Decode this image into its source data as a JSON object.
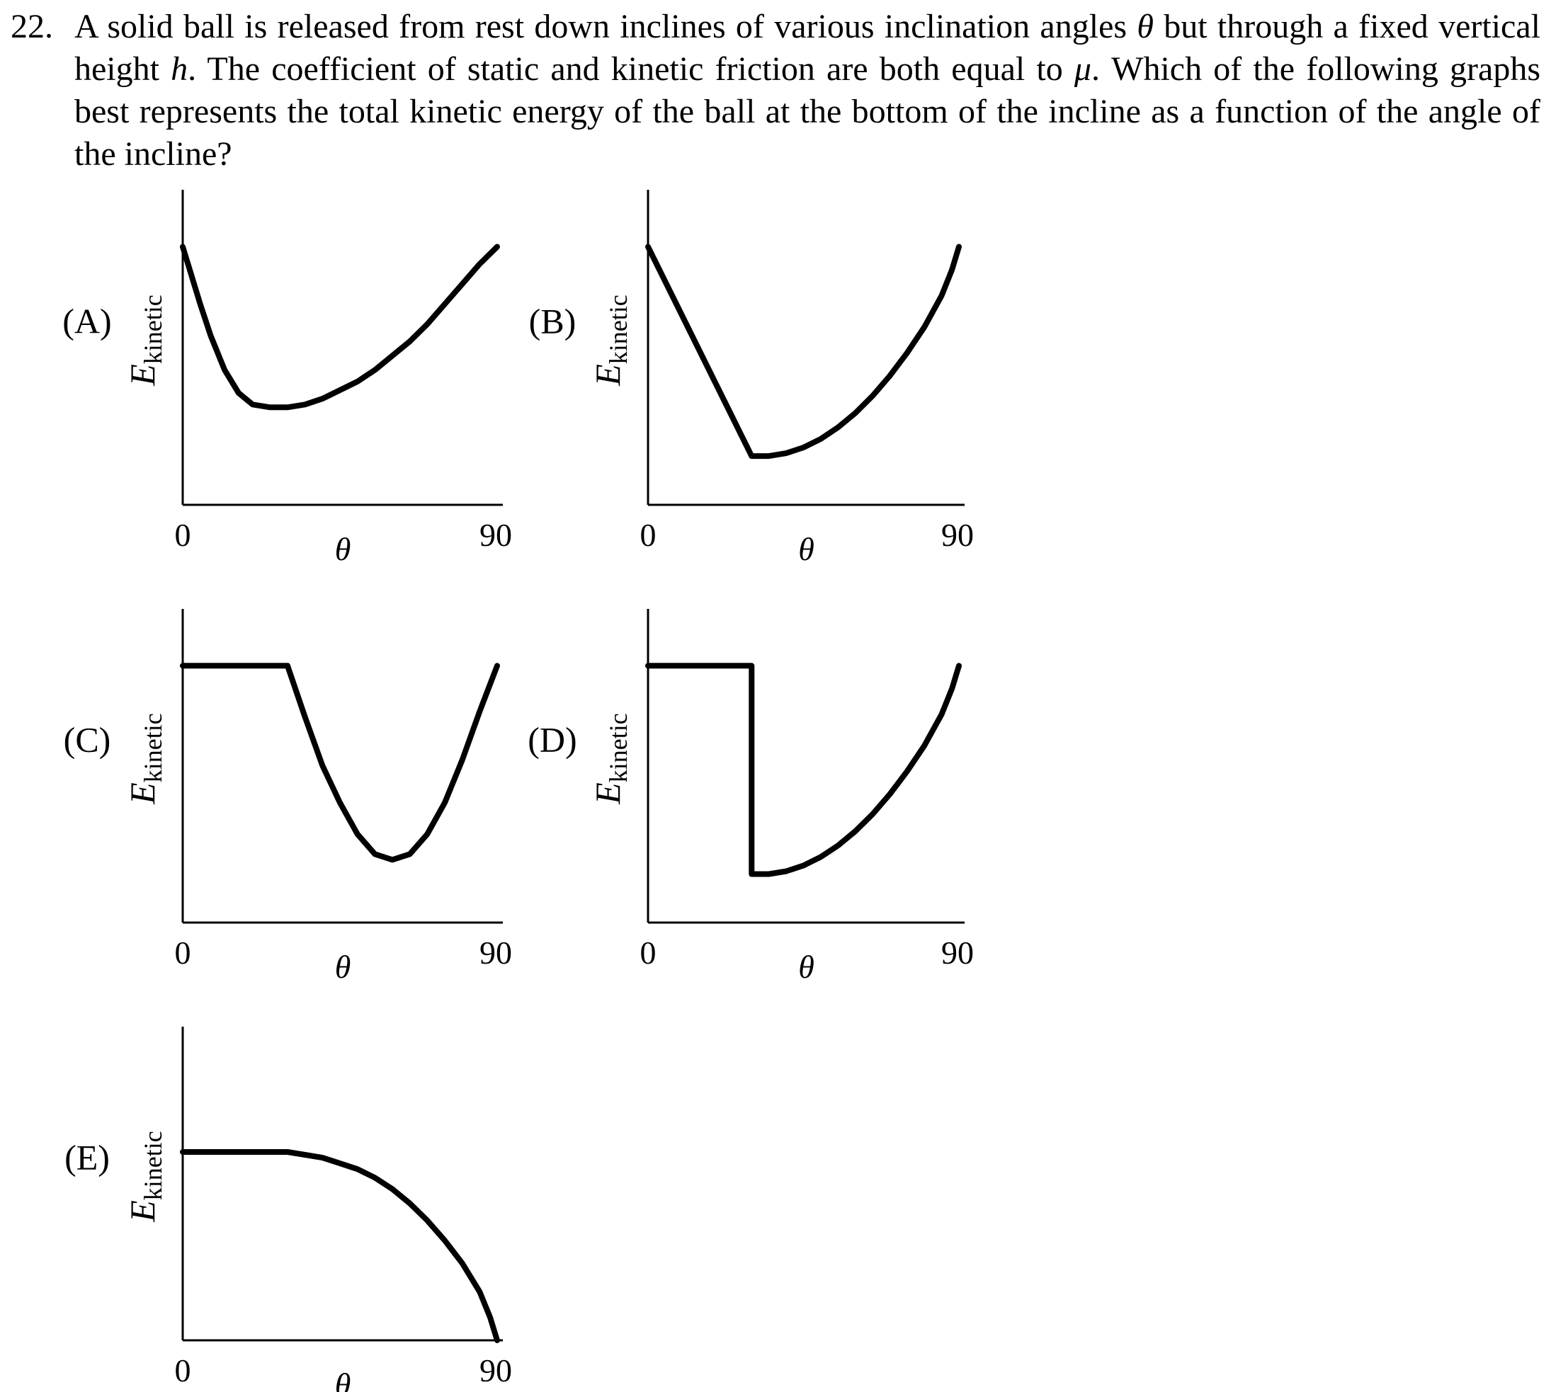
{
  "question": {
    "number": "22.",
    "text_parts": [
      "A solid ball is released from rest down inclines of various inclination angles ",
      "θ",
      " but through a fixed vertical height ",
      "h",
      ". The coefficient of static and kinetic friction are both equal to ",
      "μ",
      ". Which of the following graphs best represents the total kinetic energy of the ball at the bottom of the incline as a function of the angle of the incline?"
    ]
  },
  "axis_labels": {
    "y_main": "E",
    "y_sub": "kinetic",
    "x": "θ",
    "x_min": "0",
    "x_max": "90"
  },
  "options": [
    {
      "label": "(A)"
    },
    {
      "label": "(B)"
    },
    {
      "label": "(C)"
    },
    {
      "label": "(D)"
    },
    {
      "label": "(E)"
    }
  ],
  "chart_data": [
    {
      "type": "line",
      "option": "(A)",
      "xlabel": "θ",
      "ylabel": "Ekinetic",
      "xlim": [
        0,
        90
      ],
      "x_ticks": [
        "0",
        "90"
      ],
      "series": [
        {
          "x": [
            0,
            2,
            5,
            8,
            12,
            16,
            20,
            25,
            30,
            35,
            40,
            45,
            50,
            55,
            60,
            65,
            70,
            75,
            80,
            85,
            90
          ],
          "values": [
            0.9,
            0.82,
            0.7,
            0.59,
            0.47,
            0.39,
            0.35,
            0.34,
            0.34,
            0.35,
            0.37,
            0.4,
            0.43,
            0.47,
            0.52,
            0.57,
            0.63,
            0.7,
            0.77,
            0.84,
            0.9
          ]
        }
      ]
    },
    {
      "type": "line",
      "option": "(B)",
      "xlabel": "θ",
      "ylabel": "Ekinetic",
      "xlim": [
        0,
        90
      ],
      "x_ticks": [
        "0",
        "90"
      ],
      "series": [
        {
          "x": [
            0,
            30,
            35,
            40,
            45,
            50,
            55,
            60,
            65,
            70,
            75,
            80,
            85,
            88,
            90
          ],
          "values": [
            0.9,
            0.17,
            0.17,
            0.18,
            0.2,
            0.23,
            0.27,
            0.32,
            0.38,
            0.45,
            0.53,
            0.62,
            0.73,
            0.82,
            0.9
          ]
        }
      ]
    },
    {
      "type": "line",
      "option": "(C)",
      "xlabel": "θ",
      "ylabel": "Ekinetic",
      "xlim": [
        0,
        90
      ],
      "x_ticks": [
        "0",
        "90"
      ],
      "series": [
        {
          "x": [
            0,
            30,
            35,
            40,
            45,
            50,
            55,
            60,
            65,
            70,
            75,
            80,
            85,
            90
          ],
          "values": [
            0.9,
            0.9,
            0.72,
            0.55,
            0.42,
            0.31,
            0.24,
            0.22,
            0.24,
            0.31,
            0.42,
            0.57,
            0.74,
            0.9
          ]
        }
      ]
    },
    {
      "type": "line",
      "option": "(D)",
      "xlabel": "θ",
      "ylabel": "Ekinetic",
      "xlim": [
        0,
        90
      ],
      "x_ticks": [
        "0",
        "90"
      ],
      "series": [
        {
          "x": [
            0,
            30,
            30,
            35,
            40,
            45,
            50,
            55,
            60,
            65,
            70,
            75,
            80,
            85,
            88,
            90
          ],
          "values": [
            0.9,
            0.9,
            0.17,
            0.17,
            0.18,
            0.2,
            0.23,
            0.27,
            0.32,
            0.38,
            0.45,
            0.53,
            0.62,
            0.73,
            0.82,
            0.9
          ]
        }
      ]
    },
    {
      "type": "line",
      "option": "(E)",
      "xlabel": "θ",
      "ylabel": "Ekinetic",
      "xlim": [
        0,
        90
      ],
      "x_ticks": [
        "0",
        "90"
      ],
      "series": [
        {
          "x": [
            0,
            30,
            35,
            40,
            45,
            50,
            55,
            60,
            65,
            70,
            75,
            80,
            85,
            88,
            90
          ],
          "values": [
            0.66,
            0.66,
            0.65,
            0.64,
            0.62,
            0.6,
            0.57,
            0.53,
            0.48,
            0.42,
            0.35,
            0.27,
            0.17,
            0.08,
            0.0
          ]
        }
      ]
    }
  ]
}
